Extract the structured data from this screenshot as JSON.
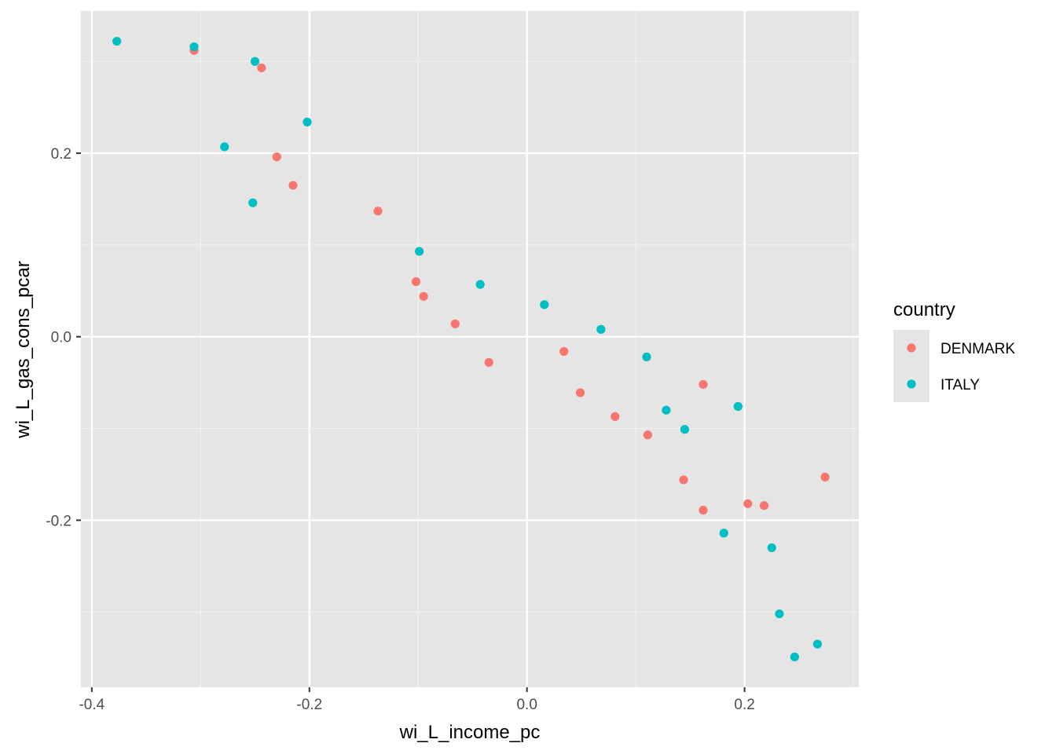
{
  "chart_data": {
    "type": "scatter",
    "xlabel": "wi_L_income_pc",
    "ylabel": "wi_L_gas_cons_pcar",
    "xlim": [
      -0.41,
      0.305
    ],
    "ylim": [
      -0.382,
      0.355
    ],
    "x_ticks": [
      -0.4,
      -0.2,
      0.0,
      0.2
    ],
    "x_tick_labels": [
      "-0.4",
      "-0.2",
      "0.0",
      "0.2"
    ],
    "y_ticks": [
      -0.2,
      0.0,
      0.2
    ],
    "y_tick_labels": [
      "-0.2",
      "0.0",
      "0.2"
    ],
    "grid": true,
    "background": "#e5e5e5",
    "legend": {
      "title": "country",
      "position": "right"
    },
    "series": [
      {
        "name": "DENMARK",
        "color": "#f8766d",
        "points": [
          [
            -0.306,
            0.312
          ],
          [
            -0.244,
            0.293
          ],
          [
            -0.23,
            0.196
          ],
          [
            -0.215,
            0.165
          ],
          [
            -0.137,
            0.137
          ],
          [
            -0.102,
            0.06
          ],
          [
            -0.095,
            0.044
          ],
          [
            -0.066,
            0.014
          ],
          [
            -0.035,
            -0.028
          ],
          [
            0.034,
            -0.016
          ],
          [
            0.049,
            -0.061
          ],
          [
            0.081,
            -0.087
          ],
          [
            0.111,
            -0.107
          ],
          [
            0.144,
            -0.156
          ],
          [
            0.162,
            -0.052
          ],
          [
            0.162,
            -0.189
          ],
          [
            0.203,
            -0.182
          ],
          [
            0.218,
            -0.184
          ],
          [
            0.274,
            -0.153
          ]
        ]
      },
      {
        "name": "ITALY",
        "color": "#00bfc4",
        "points": [
          [
            -0.377,
            0.322
          ],
          [
            -0.306,
            0.316
          ],
          [
            -0.25,
            0.3
          ],
          [
            -0.202,
            0.234
          ],
          [
            -0.278,
            0.207
          ],
          [
            -0.252,
            0.146
          ],
          [
            -0.099,
            0.093
          ],
          [
            -0.043,
            0.057
          ],
          [
            0.016,
            0.035
          ],
          [
            0.068,
            0.008
          ],
          [
            0.11,
            -0.022
          ],
          [
            0.128,
            -0.08
          ],
          [
            0.145,
            -0.101
          ],
          [
            0.194,
            -0.076
          ],
          [
            0.181,
            -0.214
          ],
          [
            0.225,
            -0.23
          ],
          [
            0.232,
            -0.302
          ],
          [
            0.246,
            -0.349
          ],
          [
            0.267,
            -0.335
          ]
        ]
      }
    ]
  }
}
